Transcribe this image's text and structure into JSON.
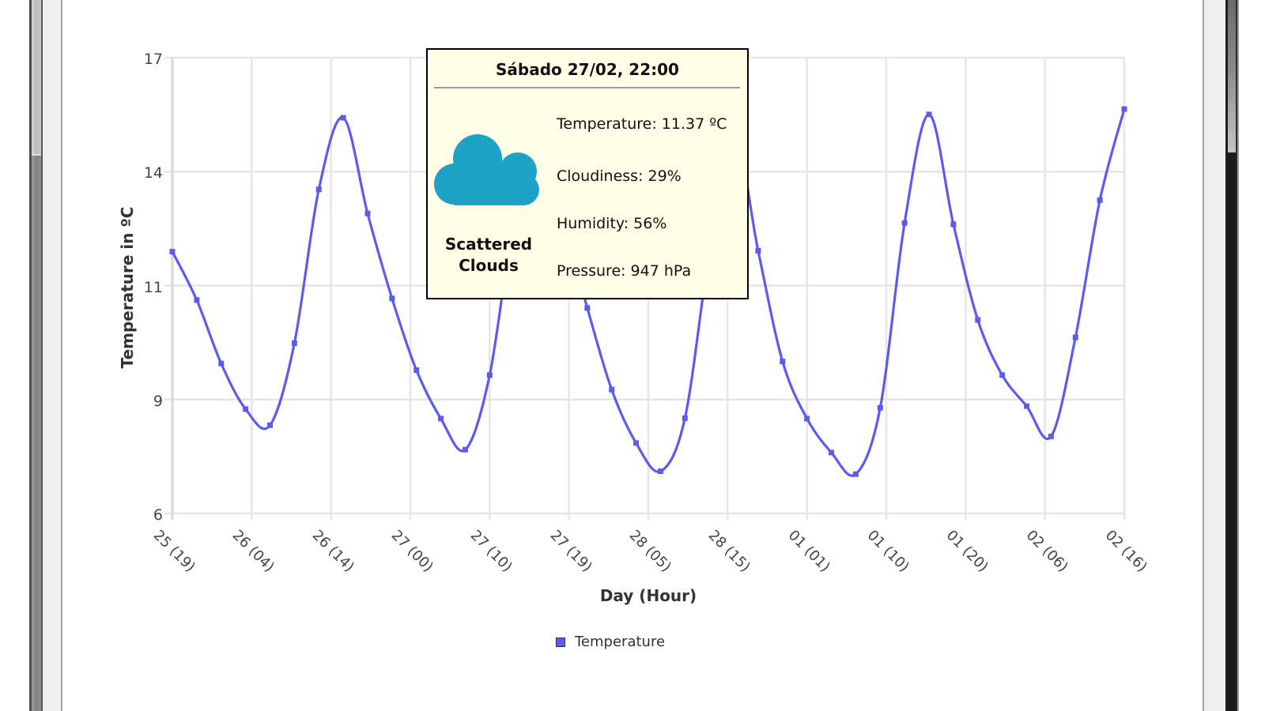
{
  "chart_data": {
    "type": "line",
    "title": "",
    "xlabel": "Day (Hour)",
    "ylabel": "Temperature in ºC",
    "x_tick_labels": [
      "25 (19)",
      "26 (04)",
      "26 (14)",
      "27 (00)",
      "27 (10)",
      "27 (19)",
      "28 (05)",
      "28 (15)",
      "01 (01)",
      "01 (10)",
      "01 (20)",
      "02 (06)",
      "02 (16)"
    ],
    "y_tick_labels": [
      "6",
      "9",
      "11",
      "14",
      "17"
    ],
    "ylim": [
      6.41,
      17.41
    ],
    "grid": true,
    "legend_position": "bottom",
    "x": [
      "25 (19)",
      "25 (22)",
      "26 (01)",
      "26 (04)",
      "26 (07)",
      "26 (10)",
      "26 (13)",
      "26 (16)",
      "26 (19)",
      "26 (22)",
      "27 (01)",
      "27 (04)",
      "27 (07)",
      "27 (10)",
      "27 (13)",
      "27 (16)",
      "27 (19)",
      "27 (22)",
      "28 (01)",
      "28 (04)",
      "28 (07)",
      "28 (10)",
      "28 (13)",
      "28 (16)",
      "28 (19)",
      "28 (22)",
      "01 (01)",
      "01 (04)",
      "01 (07)",
      "01 (10)",
      "01 (13)",
      "01 (16)",
      "01 (19)",
      "01 (22)",
      "02 (01)",
      "02 (04)",
      "02 (07)",
      "02 (10)",
      "02 (13)",
      "02 (16)"
    ],
    "series": [
      {
        "name": "Temperature",
        "color": "#5b5bef",
        "values": [
          12.73,
          11.56,
          10.03,
          8.93,
          8.54,
          10.52,
          14.23,
          15.96,
          13.65,
          11.6,
          9.87,
          8.7,
          7.95,
          9.75,
          13.5,
          15.3,
          13.5,
          11.37,
          9.4,
          8.11,
          7.43,
          8.71,
          12.7,
          15.6,
          12.75,
          10.08,
          8.7,
          7.88,
          7.36,
          8.96,
          13.42,
          16.04,
          13.39,
          11.08,
          9.75,
          9.0,
          8.27,
          10.66,
          13.97,
          16.17
        ]
      }
    ]
  },
  "tooltip": {
    "title": "Sábado 27/02, 22:00",
    "icon": "cloud-icon",
    "icon_color": "#1da3c7",
    "condition": "Scattered Clouds",
    "details": [
      {
        "label": "Temperature:",
        "value": "11.37 ºC"
      },
      {
        "label": "Cloudiness:",
        "value": "29%"
      },
      {
        "label": "Humidity:",
        "value": "56%"
      },
      {
        "label": "Pressure:",
        "value": "947 hPa"
      }
    ]
  }
}
